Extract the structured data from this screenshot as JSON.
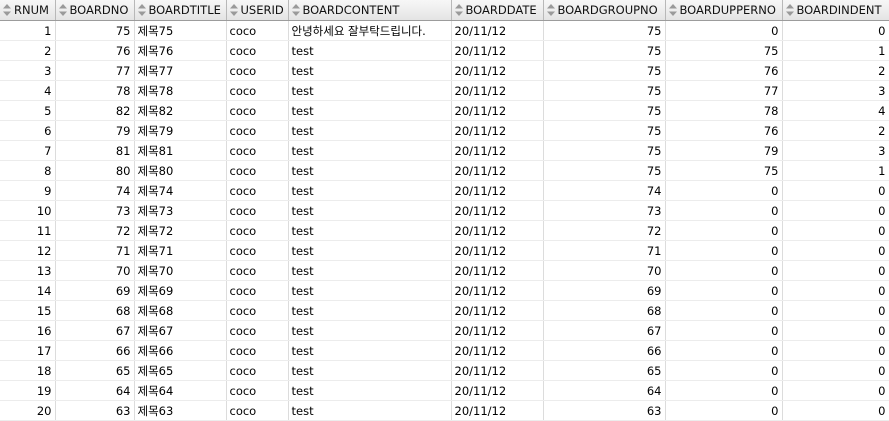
{
  "columns": [
    "RNUM",
    "BOARDNO",
    "BOARDTITLE",
    "USERID",
    "BOARDCONTENT",
    "BOARDDATE",
    "BOARDGROUPNO",
    "BOARDUPPERNO",
    "BOARDINDENT"
  ],
  "icons": {
    "sort": "sort-arrows-icon"
  },
  "rows": [
    [
      "1",
      "75",
      "제목75",
      "coco",
      "안녕하세요 잘부탁드립니다.",
      "20/11/12",
      "75",
      "0",
      "0"
    ],
    [
      "2",
      "76",
      "제목76",
      "coco",
      "test",
      "20/11/12",
      "75",
      "75",
      "1"
    ],
    [
      "3",
      "77",
      "제목77",
      "coco",
      "test",
      "20/11/12",
      "75",
      "76",
      "2"
    ],
    [
      "4",
      "78",
      "제목78",
      "coco",
      "test",
      "20/11/12",
      "75",
      "77",
      "3"
    ],
    [
      "5",
      "82",
      "제목82",
      "coco",
      "test",
      "20/11/12",
      "75",
      "78",
      "4"
    ],
    [
      "6",
      "79",
      "제목79",
      "coco",
      "test",
      "20/11/12",
      "75",
      "76",
      "2"
    ],
    [
      "7",
      "81",
      "제목81",
      "coco",
      "test",
      "20/11/12",
      "75",
      "79",
      "3"
    ],
    [
      "8",
      "80",
      "제목80",
      "coco",
      "test",
      "20/11/12",
      "75",
      "75",
      "1"
    ],
    [
      "9",
      "74",
      "제목74",
      "coco",
      "test",
      "20/11/12",
      "74",
      "0",
      "0"
    ],
    [
      "10",
      "73",
      "제목73",
      "coco",
      "test",
      "20/11/12",
      "73",
      "0",
      "0"
    ],
    [
      "11",
      "72",
      "제목72",
      "coco",
      "test",
      "20/11/12",
      "72",
      "0",
      "0"
    ],
    [
      "12",
      "71",
      "제목71",
      "coco",
      "test",
      "20/11/12",
      "71",
      "0",
      "0"
    ],
    [
      "13",
      "70",
      "제목70",
      "coco",
      "test",
      "20/11/12",
      "70",
      "0",
      "0"
    ],
    [
      "14",
      "69",
      "제목69",
      "coco",
      "test",
      "20/11/12",
      "69",
      "0",
      "0"
    ],
    [
      "15",
      "68",
      "제목68",
      "coco",
      "test",
      "20/11/12",
      "68",
      "0",
      "0"
    ],
    [
      "16",
      "67",
      "제목67",
      "coco",
      "test",
      "20/11/12",
      "67",
      "0",
      "0"
    ],
    [
      "17",
      "66",
      "제목66",
      "coco",
      "test",
      "20/11/12",
      "66",
      "0",
      "0"
    ],
    [
      "18",
      "65",
      "제목65",
      "coco",
      "test",
      "20/11/12",
      "65",
      "0",
      "0"
    ],
    [
      "19",
      "64",
      "제목64",
      "coco",
      "test",
      "20/11/12",
      "64",
      "0",
      "0"
    ],
    [
      "20",
      "63",
      "제목63",
      "coco",
      "test",
      "20/11/12",
      "63",
      "0",
      "0"
    ]
  ]
}
